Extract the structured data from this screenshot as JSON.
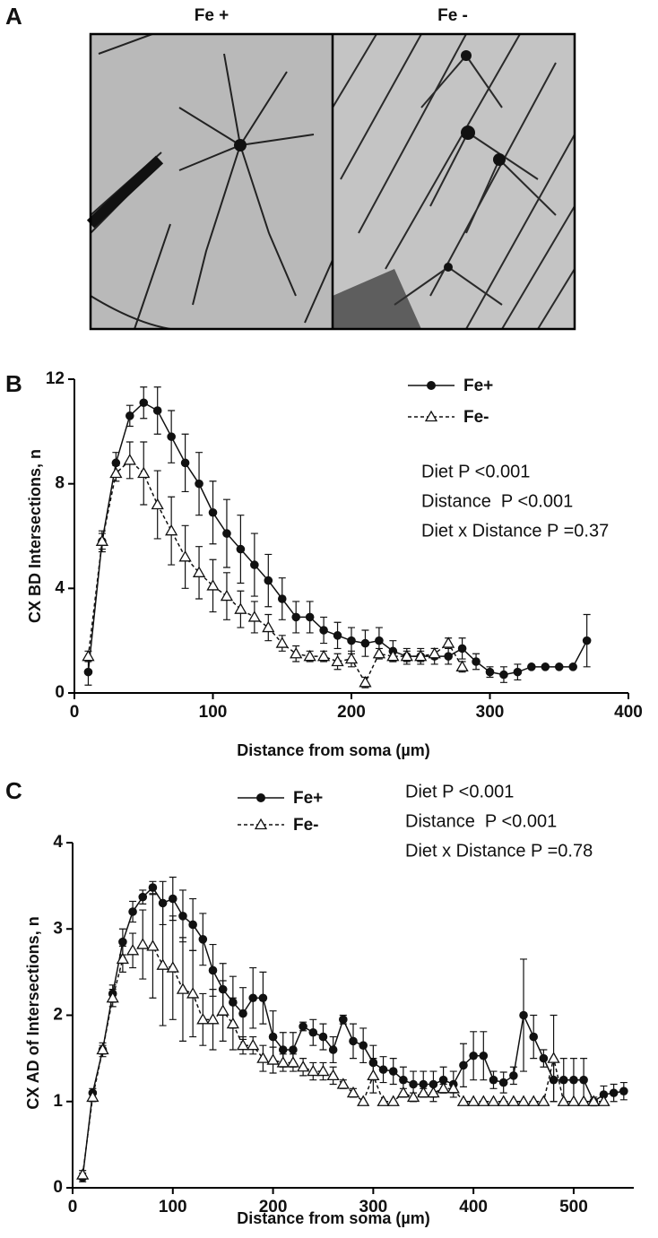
{
  "panel_a": {
    "label": "A",
    "images": [
      "Fe +",
      "Fe -"
    ]
  },
  "chart_data": [
    {
      "type": "line",
      "panel_label": "B",
      "xlabel": "Distance from soma (µm)",
      "ylabel": "CX BD Intersections, n",
      "xlim": [
        0,
        400
      ],
      "xticks": [
        0,
        100,
        200,
        300,
        400
      ],
      "ylim": [
        0,
        12
      ],
      "yticks": [
        0,
        4,
        8,
        12
      ],
      "annotations": [
        "Diet P <0.001",
        "Distance  P <0.001",
        "Diet x Distance P =0.37"
      ],
      "series": [
        {
          "name": "Fe+",
          "color": "#111111",
          "marker": "circle",
          "line_style": "solid",
          "x": [
            10,
            20,
            30,
            40,
            50,
            60,
            70,
            80,
            90,
            100,
            110,
            120,
            130,
            140,
            150,
            160,
            170,
            180,
            190,
            200,
            210,
            220,
            230,
            240,
            250,
            260,
            270,
            280,
            290,
            300,
            310,
            320,
            330,
            340,
            350,
            360,
            370
          ],
          "values": [
            0.8,
            5.8,
            8.8,
            10.6,
            11.1,
            10.8,
            9.8,
            8.8,
            8.0,
            6.9,
            6.1,
            5.5,
            4.9,
            4.3,
            3.6,
            2.9,
            2.9,
            2.4,
            2.2,
            2.0,
            1.9,
            2.0,
            1.6,
            1.4,
            1.4,
            1.4,
            1.4,
            1.7,
            1.2,
            0.8,
            0.7,
            0.8,
            1.0,
            1.0,
            1.0,
            1.0,
            2.0
          ],
          "errors": [
            0.5,
            0.4,
            0.4,
            0.4,
            0.6,
            0.9,
            1.0,
            1.1,
            1.2,
            1.2,
            1.3,
            1.3,
            1.2,
            1.0,
            0.8,
            0.6,
            0.6,
            0.5,
            0.5,
            0.5,
            0.5,
            0.5,
            0.4,
            0.3,
            0.3,
            0.3,
            0.3,
            0.4,
            0.3,
            0.2,
            0.3,
            0.3,
            0,
            0,
            0,
            0,
            1.0
          ]
        },
        {
          "name": "Fe-",
          "color": "#111111",
          "marker": "triangle",
          "line_style": "dashed",
          "x": [
            10,
            20,
            30,
            40,
            50,
            60,
            70,
            80,
            90,
            100,
            110,
            120,
            130,
            140,
            150,
            160,
            170,
            180,
            190,
            200,
            210,
            220,
            230,
            240,
            250,
            260,
            270,
            280
          ],
          "values": [
            1.4,
            5.8,
            8.4,
            8.9,
            8.4,
            7.2,
            6.2,
            5.2,
            4.6,
            4.1,
            3.7,
            3.2,
            2.9,
            2.5,
            1.9,
            1.5,
            1.4,
            1.4,
            1.2,
            1.3,
            0.4,
            1.5,
            1.4,
            1.4,
            1.4,
            1.5,
            1.9,
            1.0
          ],
          "errors": [
            0.2,
            0.3,
            0.3,
            0.7,
            1.2,
            1.3,
            1.3,
            1.2,
            1.0,
            1.0,
            0.9,
            0.7,
            0.6,
            0.5,
            0.3,
            0.3,
            0.2,
            0.2,
            0.3,
            0.3,
            0.2,
            0.2,
            0.2,
            0.2,
            0.2,
            0.2,
            0.2,
            0.2
          ]
        }
      ]
    },
    {
      "type": "line",
      "panel_label": "C",
      "xlabel": "Distance from soma (µm)",
      "ylabel": "CX AD of Intersections, n",
      "xlim": [
        0,
        560
      ],
      "xticks": [
        0,
        100,
        200,
        300,
        400,
        500
      ],
      "ylim": [
        0,
        4
      ],
      "yticks": [
        0,
        1,
        2,
        3,
        4
      ],
      "annotations": [
        "Diet P <0.001",
        "Distance  P <0.001",
        "Diet x Distance P =0.78"
      ],
      "series": [
        {
          "name": "Fe+",
          "color": "#111111",
          "marker": "circle",
          "line_style": "solid",
          "x": [
            10,
            20,
            30,
            40,
            50,
            60,
            70,
            80,
            90,
            100,
            110,
            120,
            130,
            140,
            150,
            160,
            170,
            180,
            190,
            200,
            210,
            220,
            230,
            240,
            250,
            260,
            270,
            280,
            290,
            300,
            310,
            320,
            330,
            340,
            350,
            360,
            370,
            380,
            390,
            400,
            410,
            420,
            430,
            440,
            450,
            460,
            470,
            480,
            490,
            500,
            510,
            520,
            530,
            540,
            550
          ],
          "values": [
            0.12,
            1.1,
            1.6,
            2.25,
            2.85,
            3.2,
            3.37,
            3.48,
            3.3,
            3.35,
            3.15,
            3.05,
            2.88,
            2.52,
            2.3,
            2.15,
            2.02,
            2.2,
            2.2,
            1.75,
            1.6,
            1.6,
            1.87,
            1.8,
            1.75,
            1.6,
            1.95,
            1.7,
            1.65,
            1.45,
            1.37,
            1.35,
            1.25,
            1.2,
            1.2,
            1.2,
            1.25,
            1.2,
            1.42,
            1.53,
            1.53,
            1.25,
            1.22,
            1.3,
            2.0,
            1.75,
            1.5,
            1.25,
            1.25,
            1.25,
            1.25,
            1.0,
            1.08,
            1.1,
            1.12
          ],
          "errors": [
            0.05,
            0.05,
            0.08,
            0.1,
            0.15,
            0.12,
            0.08,
            0.07,
            0.25,
            0.25,
            0.3,
            0.3,
            0.3,
            0.3,
            0.3,
            0.3,
            0.3,
            0.35,
            0.3,
            0.3,
            0.2,
            0.2,
            0.05,
            0.15,
            0.15,
            0.15,
            0.05,
            0.2,
            0.2,
            0.2,
            0.15,
            0.15,
            0.15,
            0.15,
            0.15,
            0.15,
            0.15,
            0.15,
            0.25,
            0.28,
            0.28,
            0.1,
            0.12,
            0.1,
            0.65,
            0.25,
            0.1,
            0.25,
            0.25,
            0.25,
            0.25,
            0.05,
            0.1,
            0.1,
            0.1
          ]
        },
        {
          "name": "Fe-",
          "color": "#111111",
          "marker": "triangle",
          "line_style": "dashed",
          "x": [
            10,
            20,
            30,
            40,
            50,
            60,
            70,
            80,
            90,
            100,
            110,
            120,
            130,
            140,
            150,
            160,
            170,
            180,
            190,
            200,
            210,
            220,
            230,
            240,
            250,
            260,
            270,
            280,
            290,
            300,
            310,
            320,
            330,
            340,
            350,
            360,
            370,
            380,
            390,
            400,
            410,
            420,
            430,
            440,
            450,
            460,
            470,
            480,
            490,
            500,
            510,
            520,
            530
          ],
          "values": [
            0.15,
            1.05,
            1.6,
            2.2,
            2.65,
            2.75,
            2.82,
            2.8,
            2.58,
            2.55,
            2.3,
            2.25,
            1.95,
            1.95,
            2.05,
            1.9,
            1.65,
            1.65,
            1.5,
            1.48,
            1.45,
            1.45,
            1.4,
            1.35,
            1.35,
            1.3,
            1.2,
            1.1,
            1.0,
            1.3,
            1.0,
            1.0,
            1.1,
            1.05,
            1.1,
            1.1,
            1.15,
            1.15,
            1.0,
            1.0,
            1.0,
            1.0,
            1.0,
            1.0,
            1.0,
            1.0,
            1.0,
            1.5,
            1.0,
            1.0,
            1.0,
            1.0,
            1.0
          ],
          "errors": [
            0.05,
            0.05,
            0.05,
            0.1,
            0.15,
            0.2,
            0.4,
            0.6,
            0.7,
            0.6,
            0.6,
            0.5,
            0.3,
            0.35,
            0.35,
            0.3,
            0.1,
            0.1,
            0.15,
            0.15,
            0.1,
            0.1,
            0.1,
            0.1,
            0.1,
            0.1,
            0.05,
            0.05,
            0,
            0.2,
            0,
            0,
            0.05,
            0.05,
            0.05,
            0.1,
            0.05,
            0.05,
            0,
            0,
            0,
            0,
            0,
            0,
            0,
            0,
            0,
            0.5,
            0,
            0,
            0,
            0,
            0
          ]
        }
      ]
    }
  ]
}
